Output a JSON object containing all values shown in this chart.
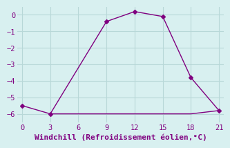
{
  "line1_x": [
    0,
    3,
    9,
    12,
    15,
    18,
    21
  ],
  "line1_y": [
    -5.5,
    -6.0,
    -0.4,
    0.2,
    -0.1,
    -3.8,
    -5.8
  ],
  "line2_x": [
    3,
    6,
    9,
    12,
    15,
    18,
    21
  ],
  "line2_y": [
    -6.0,
    -6.0,
    -6.0,
    -6.0,
    -6.0,
    -6.0,
    -5.8
  ],
  "color": "#800080",
  "xlabel": "Windchill (Refroidissement éolien,°C)",
  "xlim": [
    -0.5,
    21.5
  ],
  "ylim": [
    -6.5,
    0.5
  ],
  "xticks": [
    0,
    3,
    6,
    9,
    12,
    15,
    18,
    21
  ],
  "yticks": [
    0,
    -1,
    -2,
    -3,
    -4,
    -5,
    -6
  ],
  "bg_color": "#d8f0f0",
  "grid_color": "#b8d8d8",
  "marker": "D",
  "markersize": 3,
  "linewidth": 1.0,
  "xlabel_fontsize": 8,
  "tick_fontsize": 7.5
}
